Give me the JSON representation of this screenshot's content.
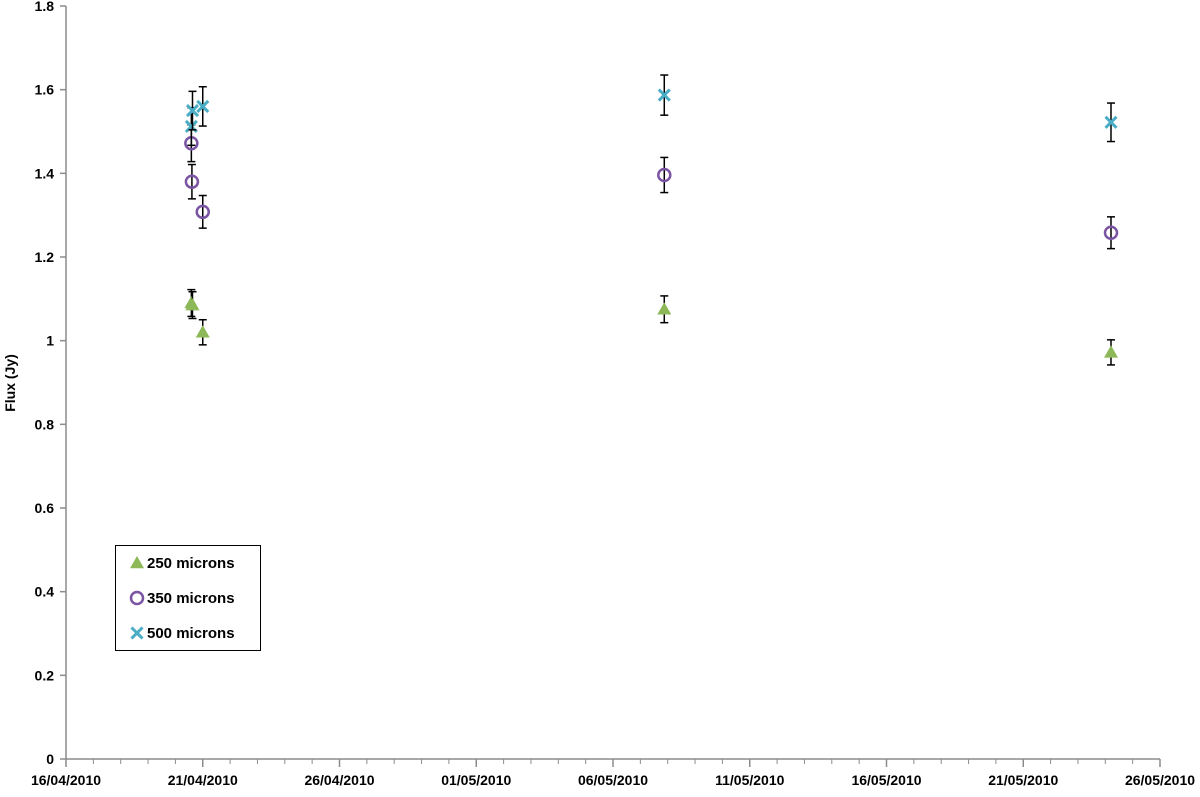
{
  "chart_data": {
    "type": "scatter",
    "title": "",
    "xlabel": "",
    "ylabel": "Flux (Jy)",
    "x_type": "date",
    "xlim": [
      "16/04/2010",
      "26/05/2010"
    ],
    "ylim": [
      0,
      1.8
    ],
    "y_ticks": [
      "0",
      "0.2",
      "0.4",
      "0.6",
      "0.8",
      "1",
      "1.2",
      "1.4",
      "1.6",
      "1.8"
    ],
    "x_ticks": [
      "16/04/2010",
      "21/04/2010",
      "26/04/2010",
      "01/05/2010",
      "06/05/2010",
      "11/05/2010",
      "16/05/2010",
      "21/05/2010",
      "26/05/2010"
    ],
    "grid": false,
    "legend_position": "bottom-left",
    "error_bars": true,
    "series": [
      {
        "name": "250 microns",
        "marker": "triangle",
        "color": "#8db858",
        "points": [
          {
            "x": "20/04/2010 14:00",
            "y": 1.09,
            "err": 0.032
          },
          {
            "x": "20/04/2010 15:00",
            "y": 1.085,
            "err": 0.032
          },
          {
            "x": "21/04/2010 00:00",
            "y": 1.02,
            "err": 0.03
          },
          {
            "x": "07/05/2010 21:00",
            "y": 1.075,
            "err": 0.032
          },
          {
            "x": "24/05/2010 05:00",
            "y": 0.972,
            "err": 0.03
          }
        ]
      },
      {
        "name": "350 microns",
        "marker": "circle",
        "color": "#7b55a3",
        "points": [
          {
            "x": "20/04/2010 14:00",
            "y": 1.472,
            "err": 0.044
          },
          {
            "x": "20/04/2010 14:30",
            "y": 1.38,
            "err": 0.041
          },
          {
            "x": "21/04/2010 00:00",
            "y": 1.308,
            "err": 0.039
          },
          {
            "x": "07/05/2010 21:00",
            "y": 1.396,
            "err": 0.042
          },
          {
            "x": "24/05/2010 05:00",
            "y": 1.258,
            "err": 0.038
          }
        ]
      },
      {
        "name": "500 microns",
        "marker": "x",
        "color": "#4bacc6",
        "points": [
          {
            "x": "20/04/2010 14:00",
            "y": 1.512,
            "err": 0.045
          },
          {
            "x": "20/04/2010 15:00",
            "y": 1.55,
            "err": 0.046
          },
          {
            "x": "21/04/2010 00:00",
            "y": 1.56,
            "err": 0.047
          },
          {
            "x": "07/05/2010 21:00",
            "y": 1.587,
            "err": 0.048
          },
          {
            "x": "24/05/2010 05:00",
            "y": 1.522,
            "err": 0.046
          }
        ]
      }
    ]
  }
}
